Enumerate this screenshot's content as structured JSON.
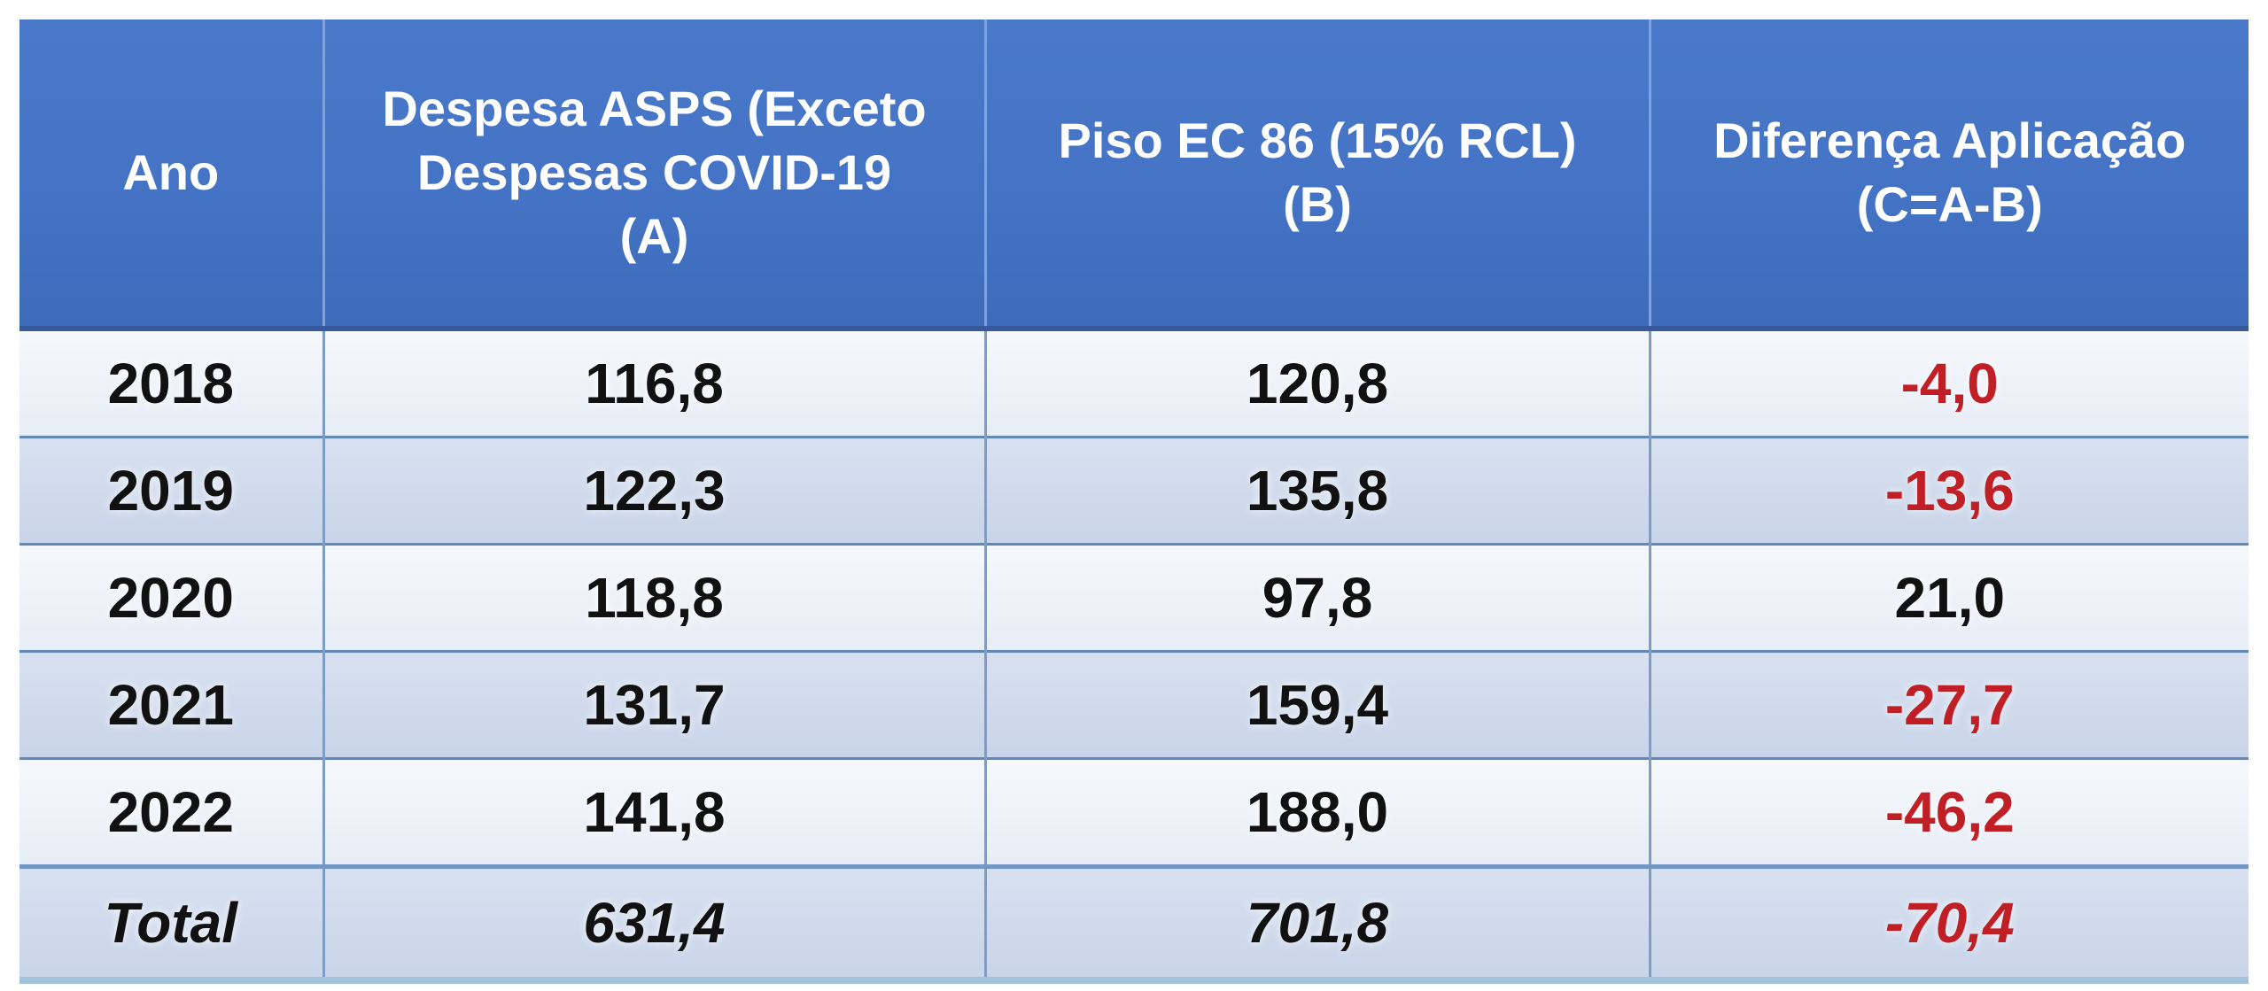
{
  "styles": {
    "header_bg": "#4472c4",
    "header_text": "#ffffff",
    "band_light_top": "#f5f8fc",
    "band_light_bottom": "#e7edf6",
    "band_dark_top": "#d8e1f0",
    "band_dark_bottom": "#c8d4e9",
    "grid_vertical": "#7b9dc8",
    "grid_horizontal": "#6288b8",
    "header_bottom_line": "#35599b",
    "table_bottom_line": "#a5c2dc",
    "negative_value": "#c01f25",
    "value_text": "#111111"
  },
  "table": {
    "header_display": [
      "Ano",
      "Despesa ASPS (Exceto\nDespesas COVID-19\n(A)",
      "Piso EC 86 (15% RCL)\n(B)",
      "Diferença Aplicação\n(C=A-B)"
    ]
  },
  "chart_data": {
    "type": "table",
    "columns": [
      "Ano",
      "Despesa ASPS (Exceto Despesas COVID-19 (A)",
      "Piso EC 86 (15% RCL) (B)",
      "Diferença Aplicação (C=A-B)"
    ],
    "rows": [
      [
        "2018",
        "116,8",
        "120,8",
        "-4,0"
      ],
      [
        "2019",
        "122,3",
        "135,8",
        "-13,6"
      ],
      [
        "2020",
        "118,8",
        "97,8",
        "21,0"
      ],
      [
        "2021",
        "131,7",
        "159,4",
        "-27,7"
      ],
      [
        "2022",
        "141,8",
        "188,0",
        "-46,2"
      ],
      [
        "Total",
        "631,4",
        "701,8",
        "-70,4"
      ]
    ],
    "numeric": {
      "years": [
        2018,
        2019,
        2020,
        2021,
        2022
      ],
      "series": [
        {
          "name": "Despesa ASPS (Exceto Despesas COVID-19) (A)",
          "values": [
            116.8,
            122.3,
            118.8,
            131.7,
            141.8
          ],
          "total": 631.4
        },
        {
          "name": "Piso EC 86 (15% RCL) (B)",
          "values": [
            120.8,
            135.8,
            97.8,
            159.4,
            188.0
          ],
          "total": 701.8
        },
        {
          "name": "Diferença Aplicação (C=A-B)",
          "values": [
            -4.0,
            -13.6,
            21.0,
            -27.7,
            -46.2
          ],
          "total": -70.4
        }
      ]
    }
  }
}
